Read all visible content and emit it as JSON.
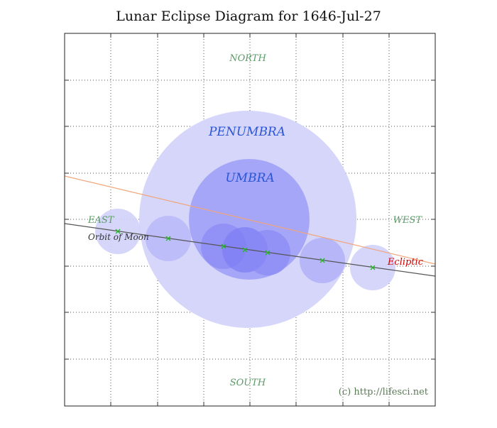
{
  "title": "Lunar Eclipse Diagram for 1646-Jul-27",
  "directions": {
    "north": "NORTH",
    "south": "SOUTH",
    "east": "EAST",
    "west": "WEST"
  },
  "shadows": {
    "penumbra_label": "PENUMBRA",
    "umbra_label": "UMBRA"
  },
  "lines": {
    "orbit_label": "Orbit of Moon",
    "ecliptic_label": "Ecliptic"
  },
  "copyright": "(c) http://lifesci.net",
  "colors": {
    "penumbra": "#d6d6fb",
    "umbra": "#9e9ef7",
    "moon": "#8f8ff5",
    "moon_outer": "#c8c8fa",
    "shadow_text": "#2a55d6",
    "direction_text": "#5a9a68",
    "ecliptic": "#f0a57a",
    "orbit": "#555555",
    "ecliptic_text": "#cc0000",
    "marker": "#22bb22"
  }
}
